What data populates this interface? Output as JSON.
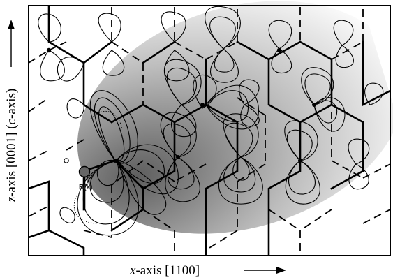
{
  "figure": {
    "x_axis_label": {
      "italic": "x",
      "rest": "-axis [1100]"
    },
    "y_axis_label": {
      "italic_z": "z",
      "middle": "-axis [0001] (",
      "italic_c": "c",
      "end": "-axis)"
    },
    "atom_label": "B(k)",
    "colors": {
      "frame": "#000000",
      "shade_dark": "#6a6a6a",
      "shade_light": "#ffffff",
      "atom_fill": "#666666"
    }
  }
}
